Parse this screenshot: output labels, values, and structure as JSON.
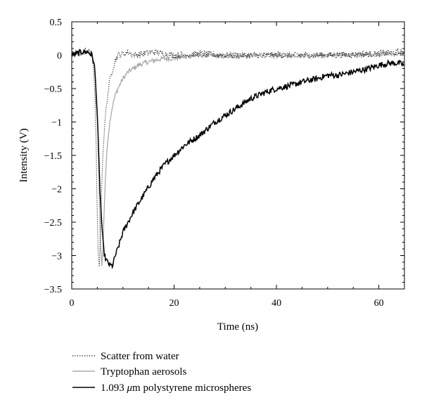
{
  "chart_data": {
    "type": "line",
    "title": "",
    "xlabel": "Time (ns)",
    "ylabel": "Intensity (V)",
    "xlim": [
      0,
      65
    ],
    "ylim": [
      -3.5,
      0.5
    ],
    "xticks": [
      0,
      20,
      40,
      60
    ],
    "yticks": [
      0.5,
      0,
      -0.5,
      -1,
      -1.5,
      -2,
      -2.5,
      -3,
      -3.5
    ],
    "xtick_labels": [
      "0",
      "20",
      "40",
      "60"
    ],
    "ytick_labels": [
      "0.5",
      "0",
      "−0.5",
      "−1",
      "−1.5",
      "−2",
      "−2.5",
      "−3",
      "−3.5"
    ],
    "grid": false,
    "legend_position": "bottom-left, below plot",
    "series": [
      {
        "name": "Scatter from water",
        "style": "dotted",
        "color": "#000000",
        "x": [
          0,
          2,
          3,
          4,
          4.5,
          4.8,
          5.0,
          5.2,
          5.4,
          5.6,
          5.8,
          6.0,
          6.3,
          6.6,
          7.0,
          7.5,
          8.0,
          8.5,
          9,
          10,
          11,
          12,
          14,
          16,
          20,
          25,
          30,
          40,
          50,
          60,
          65
        ],
        "values": [
          0.0,
          0.05,
          0.05,
          0.0,
          -0.5,
          -1.5,
          -2.5,
          -3.1,
          -3.15,
          -2.6,
          -2.1,
          -1.6,
          -1.2,
          -0.9,
          -0.6,
          -0.35,
          -0.2,
          -0.08,
          0.0,
          0.02,
          0.05,
          0.0,
          0.02,
          0.05,
          0.0,
          0.02,
          0.0,
          0.0,
          0.0,
          0.02,
          0.05
        ]
      },
      {
        "name": "Tryptophan aerosols",
        "style": "solid",
        "color": "#aaaaaa",
        "x": [
          0,
          2,
          3,
          4,
          4.5,
          5.0,
          5.3,
          5.6,
          5.9,
          6.1,
          6.3,
          6.6,
          7.0,
          7.5,
          8.0,
          8.5,
          9,
          10,
          11,
          12,
          13,
          14,
          16,
          18,
          20,
          22,
          25,
          30,
          40,
          50,
          60,
          65
        ],
        "values": [
          0.0,
          0.02,
          0.05,
          0.0,
          -0.2,
          -0.8,
          -1.8,
          -2.8,
          -3.15,
          -2.9,
          -2.4,
          -1.8,
          -1.3,
          -0.95,
          -0.75,
          -0.6,
          -0.5,
          -0.35,
          -0.25,
          -0.2,
          -0.15,
          -0.12,
          -0.08,
          -0.05,
          -0.05,
          -0.02,
          0.0,
          -0.02,
          0.0,
          0.0,
          0.02,
          0.02
        ]
      },
      {
        "name": "1.093 μm polystyrene microspheres",
        "style": "solid",
        "color": "#000000",
        "x": [
          0,
          2,
          3,
          4,
          4.5,
          5.0,
          5.5,
          6.0,
          6.3,
          6.6,
          7.0,
          7.5,
          8.0,
          8.5,
          9,
          10,
          11,
          12,
          14,
          16,
          18,
          20,
          22,
          25,
          28,
          30,
          32,
          35,
          38,
          40,
          43,
          45,
          48,
          50,
          52,
          55,
          58,
          60,
          62,
          64,
          65
        ],
        "values": [
          0.0,
          0.05,
          0.05,
          0.0,
          -0.2,
          -0.9,
          -2.0,
          -2.7,
          -2.95,
          -3.05,
          -3.1,
          -3.15,
          -3.15,
          -3.0,
          -2.9,
          -2.65,
          -2.5,
          -2.35,
          -2.1,
          -1.85,
          -1.65,
          -1.5,
          -1.35,
          -1.2,
          -1.0,
          -0.9,
          -0.8,
          -0.65,
          -0.55,
          -0.5,
          -0.45,
          -0.4,
          -0.35,
          -0.3,
          -0.3,
          -0.25,
          -0.2,
          -0.15,
          -0.12,
          -0.12,
          -0.15
        ]
      }
    ],
    "legend": {
      "entries": [
        {
          "label": "Scatter from water"
        },
        {
          "label": "Tryptophan aerosols"
        },
        {
          "label_prefix": "1.093 ",
          "label_mu": "μ",
          "label_suffix": "m polystyrene microspheres"
        }
      ]
    }
  }
}
